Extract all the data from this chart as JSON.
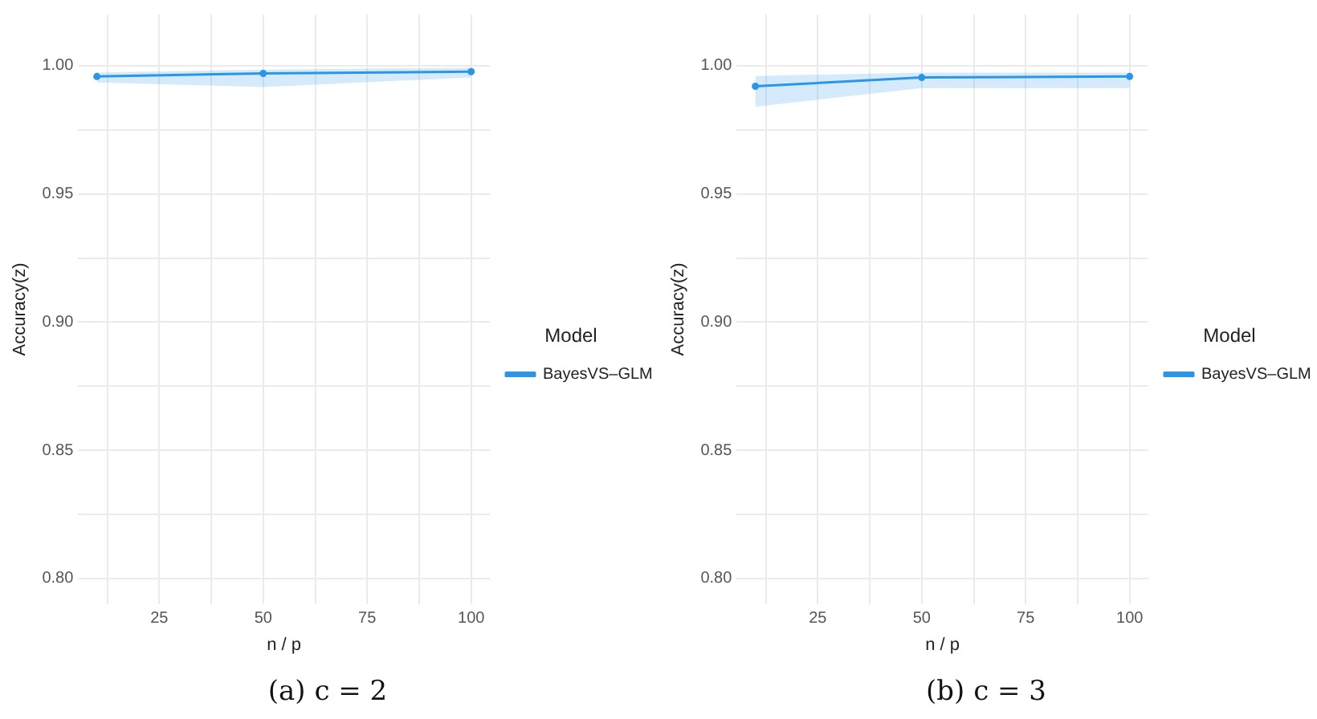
{
  "chart_data": [
    {
      "type": "line",
      "title": "(a) c = 2",
      "xlabel": "n / p",
      "ylabel": "Accuracy(z)",
      "legend_title": "Model",
      "legend": "right",
      "grid": true,
      "marker": "circle",
      "line_style": "solid",
      "x": [
        10,
        50,
        100
      ],
      "xlim": [
        5.5,
        104.5
      ],
      "xticks": [
        {
          "value": 12.5,
          "label": null
        },
        25,
        {
          "value": 37.5,
          "label": null
        },
        50,
        {
          "value": 62.5,
          "label": null
        },
        75,
        {
          "value": 87.5,
          "label": null
        },
        100
      ],
      "ylim": [
        0.79,
        1.02
      ],
      "yticks": [
        {
          "value": 0.8,
          "label": "0.80"
        },
        {
          "value": 0.825,
          "label": null
        },
        {
          "value": 0.85,
          "label": "0.85"
        },
        {
          "value": 0.875,
          "label": null
        },
        {
          "value": 0.9,
          "label": "0.90"
        },
        {
          "value": 0.925,
          "label": null
        },
        {
          "value": 0.95,
          "label": "0.95"
        },
        {
          "value": 0.975,
          "label": null
        },
        {
          "value": 1.0,
          "label": "1.00"
        }
      ],
      "series": [
        {
          "name": "BayesVS–GLM",
          "color": "#2b96e8",
          "values": [
            0.9958,
            0.997,
            0.9977
          ],
          "lower": [
            0.9935,
            0.9917,
            0.9954
          ],
          "upper": [
            0.9973,
            0.9985,
            0.9992
          ]
        }
      ]
    },
    {
      "type": "line",
      "title": "(b) c = 3",
      "xlabel": "n / p",
      "ylabel": "Accuracy(z)",
      "legend_title": "Model",
      "legend": "right",
      "grid": true,
      "marker": "circle",
      "line_style": "solid",
      "x": [
        10,
        50,
        100
      ],
      "xlim": [
        5.5,
        104.5
      ],
      "xticks": [
        {
          "value": 12.5,
          "label": null
        },
        25,
        {
          "value": 37.5,
          "label": null
        },
        50,
        {
          "value": 62.5,
          "label": null
        },
        75,
        {
          "value": 87.5,
          "label": null
        },
        100
      ],
      "ylim": [
        0.79,
        1.02
      ],
      "yticks": [
        {
          "value": 0.8,
          "label": "0.80"
        },
        {
          "value": 0.825,
          "label": null
        },
        {
          "value": 0.85,
          "label": "0.85"
        },
        {
          "value": 0.875,
          "label": null
        },
        {
          "value": 0.9,
          "label": "0.90"
        },
        {
          "value": 0.925,
          "label": null
        },
        {
          "value": 0.95,
          "label": "0.95"
        },
        {
          "value": 0.975,
          "label": null
        },
        {
          "value": 1.0,
          "label": "1.00"
        }
      ],
      "series": [
        {
          "name": "BayesVS–GLM",
          "color": "#2b96e8",
          "values": [
            0.992,
            0.9954,
            0.9958
          ],
          "lower": [
            0.984,
            0.9913,
            0.9913
          ],
          "upper": [
            0.996,
            0.9973,
            0.9973
          ]
        }
      ]
    }
  ]
}
